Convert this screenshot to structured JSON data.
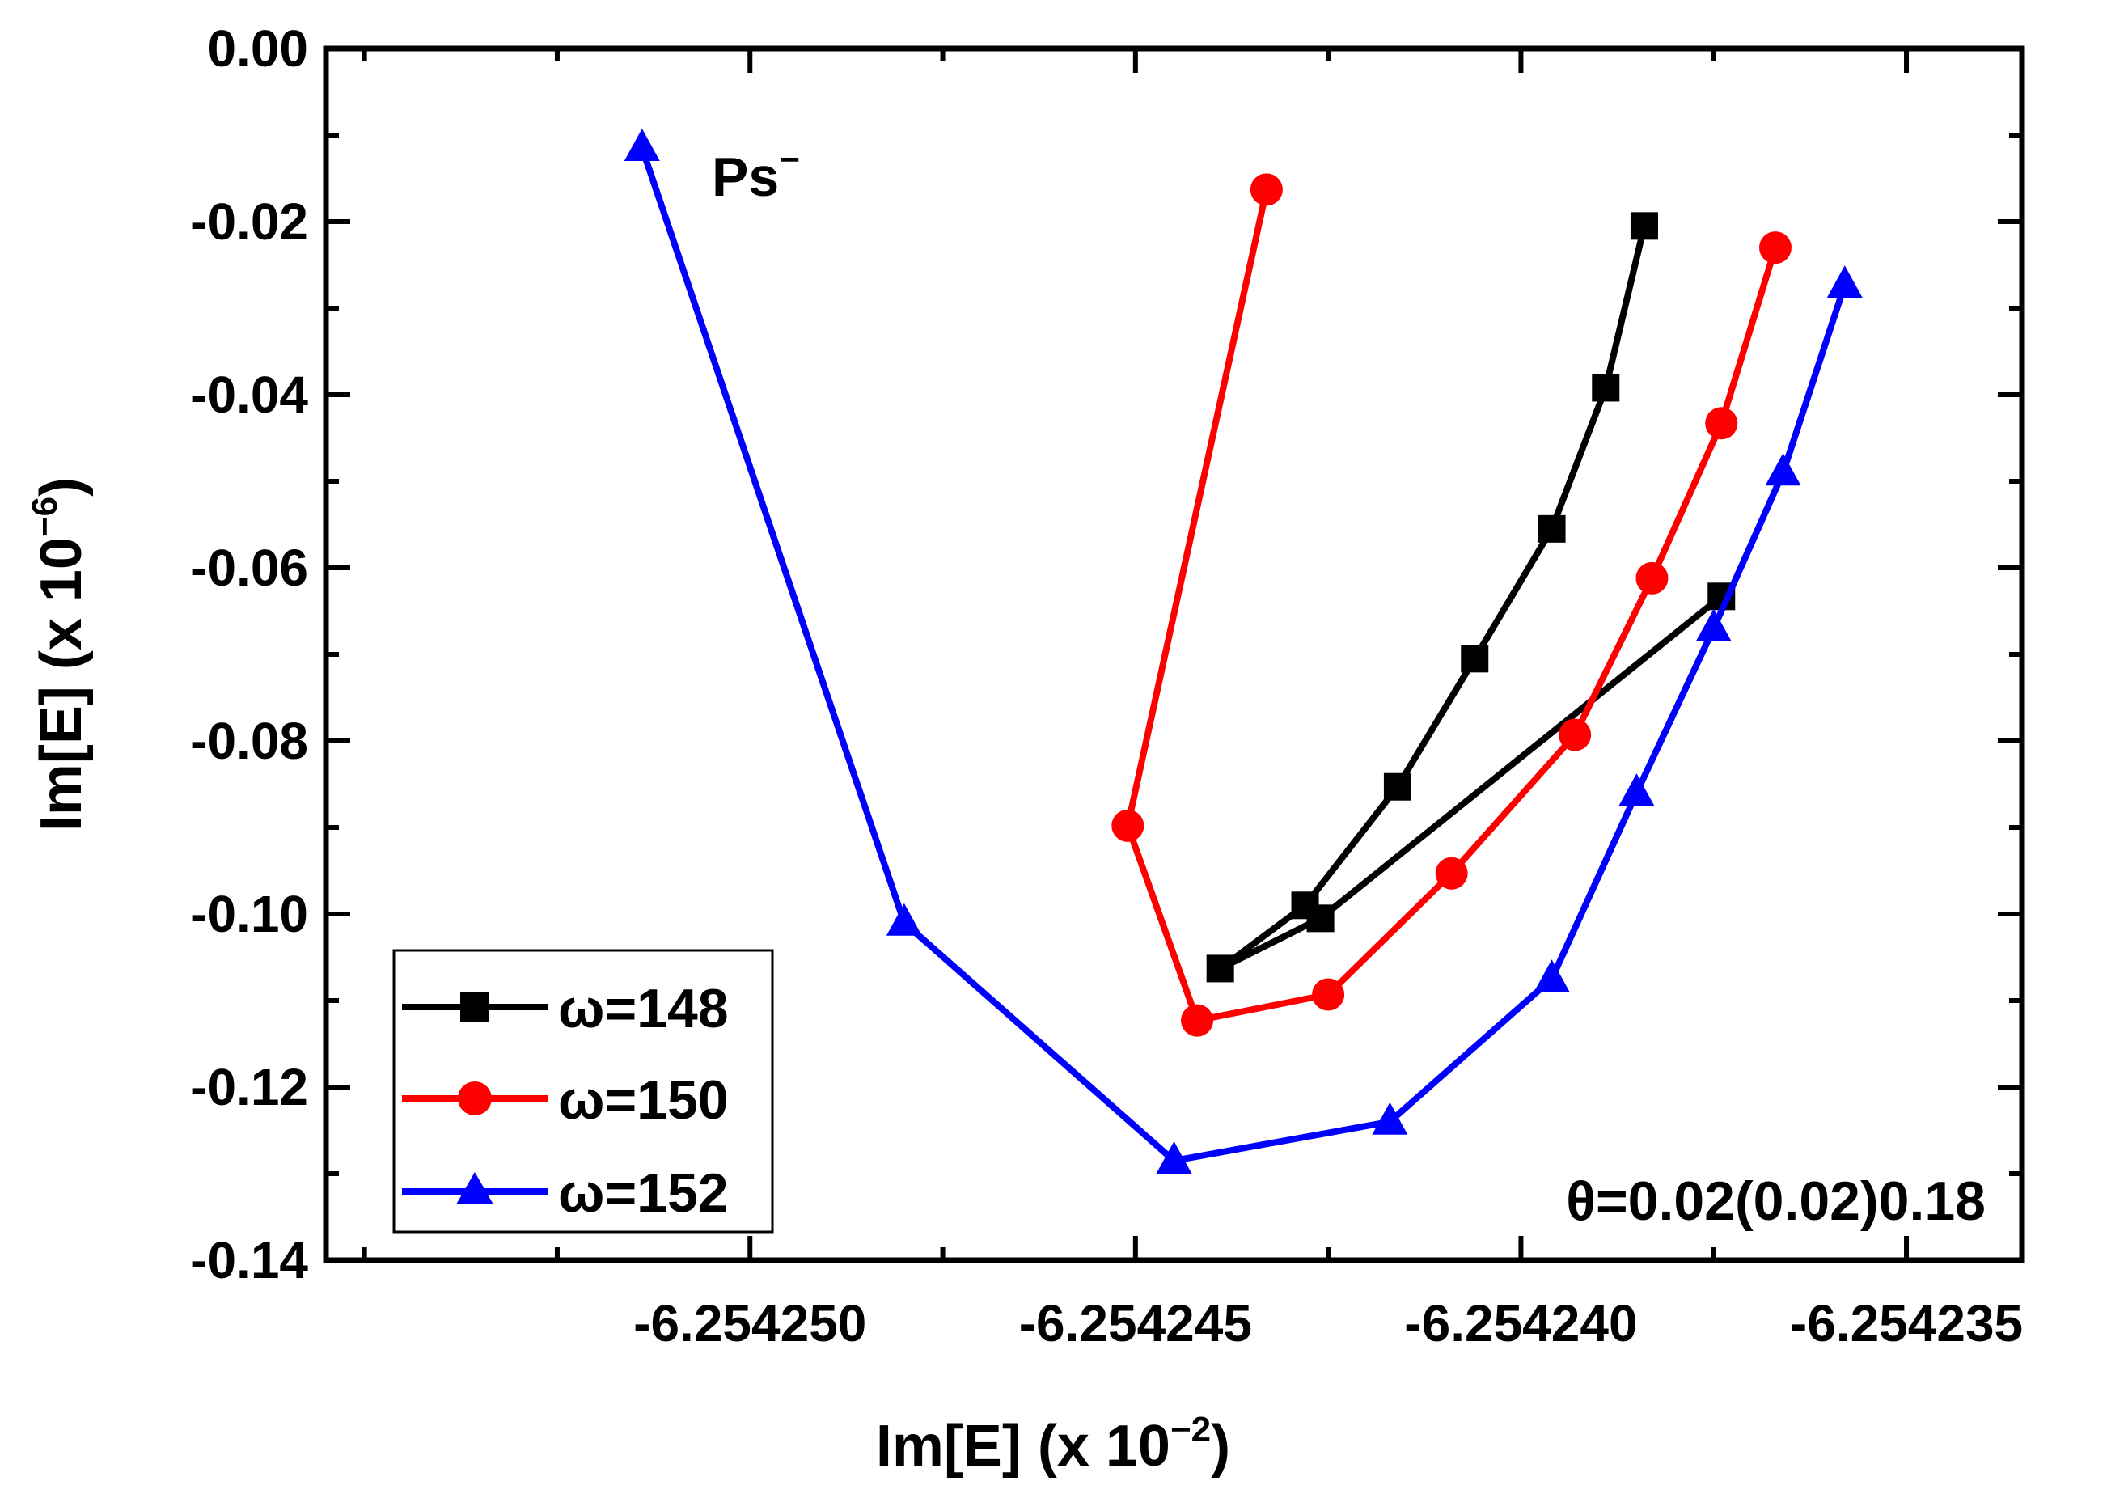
{
  "chart_data": {
    "type": "line",
    "annotation_species": "Ps",
    "annotation_species_sup": "−",
    "annotation_theta": "θ=0.02(0.02)0.18",
    "xlabel": "Im[E] (x 10",
    "xlabel_sup": "−2",
    "xlabel_end": ")",
    "ylabel": "Im[E] (x 10",
    "ylabel_sup": "−6",
    "ylabel_end": ")",
    "xlim": [
      -6.2542555,
      -6.2542335
    ],
    "ylim": [
      -0.14,
      0.0
    ],
    "x_ticks": [
      -6.25425,
      -6.254245,
      -6.25424,
      -6.254235
    ],
    "x_tick_labels": [
      "-6.254250",
      "-6.254245",
      "-6.254240",
      "-6.254235"
    ],
    "y_ticks": [
      0.0,
      -0.02,
      -0.04,
      -0.06,
      -0.08,
      -0.1,
      -0.12,
      -0.14
    ],
    "y_tick_labels": [
      "0.00",
      "-0.02",
      "-0.04",
      "-0.06",
      "-0.08",
      "-0.10",
      "-0.12",
      "-0.14"
    ],
    "series": [
      {
        "name": "ω=148",
        "color": "#000000",
        "marker": "square",
        "points": [
          [
            -6.2542384,
            -0.0205
          ],
          [
            -6.2542389,
            -0.0392
          ],
          [
            -6.2542396,
            -0.0555
          ],
          [
            -6.2542406,
            -0.0705
          ],
          [
            -6.2542416,
            -0.0853
          ],
          [
            -6.2542428,
            -0.099
          ],
          [
            -6.2542439,
            -0.1063
          ],
          [
            -6.2542426,
            -0.1005
          ],
          [
            -6.2542374,
            -0.0633
          ]
        ]
      },
      {
        "name": "ω=150",
        "color": "#ff0000",
        "marker": "circle",
        "points": [
          [
            -6.2542367,
            -0.023
          ],
          [
            -6.2542374,
            -0.0433
          ],
          [
            -6.2542383,
            -0.0612
          ],
          [
            -6.2542393,
            -0.0793
          ],
          [
            -6.2542409,
            -0.0953
          ],
          [
            -6.2542425,
            -0.1093
          ],
          [
            -6.2542442,
            -0.1123
          ],
          [
            -6.2542451,
            -0.0898
          ],
          [
            -6.2542433,
            -0.0163
          ]
        ]
      },
      {
        "name": "ω=152",
        "color": "#0000ff",
        "marker": "triangle",
        "points": [
          [
            -6.2542358,
            -0.0273
          ],
          [
            -6.2542366,
            -0.049
          ],
          [
            -6.2542375,
            -0.067
          ],
          [
            -6.2542385,
            -0.086
          ],
          [
            -6.2542396,
            -0.1075
          ],
          [
            -6.2542417,
            -0.124
          ],
          [
            -6.2542445,
            -0.1285
          ],
          [
            -6.254248,
            -0.101
          ],
          [
            -6.2542514,
            -0.0115
          ]
        ]
      }
    ]
  }
}
